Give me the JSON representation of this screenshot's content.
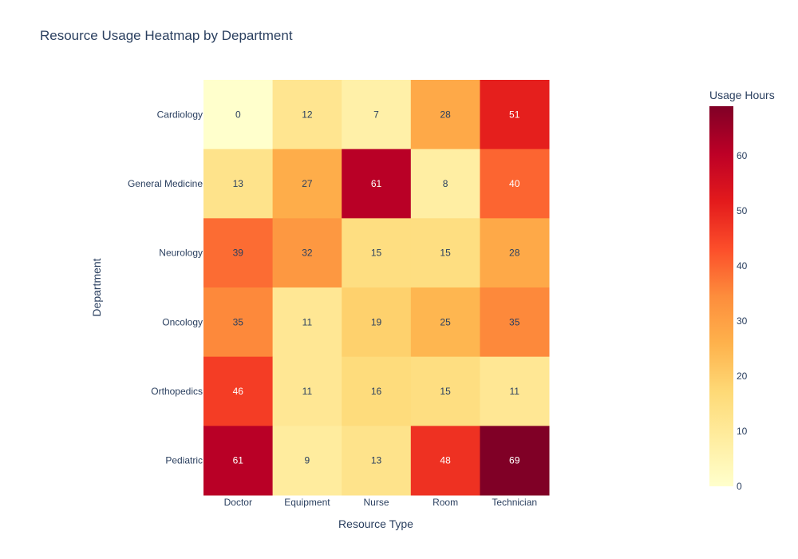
{
  "chart_data": {
    "type": "heatmap",
    "title": "Resource Usage Heatmap by Department",
    "xlabel": "Resource Type",
    "ylabel": "Department",
    "x_categories": [
      "Doctor",
      "Equipment",
      "Nurse",
      "Room",
      "Technician"
    ],
    "y_categories": [
      "Cardiology",
      "General Medicine",
      "Neurology",
      "Oncology",
      "Orthopedics",
      "Pediatric"
    ],
    "values": [
      [
        0,
        12,
        7,
        28,
        51
      ],
      [
        13,
        27,
        61,
        8,
        40
      ],
      [
        39,
        32,
        15,
        15,
        28
      ],
      [
        35,
        11,
        19,
        25,
        35
      ],
      [
        46,
        11,
        16,
        15,
        11
      ],
      [
        61,
        9,
        13,
        48,
        69
      ]
    ],
    "colorscale": "YlOrRd",
    "zmin": 0,
    "zmax": 69,
    "colorbar": {
      "title": "Usage Hours",
      "ticks": [
        0,
        10,
        20,
        30,
        40,
        50,
        60
      ]
    }
  }
}
